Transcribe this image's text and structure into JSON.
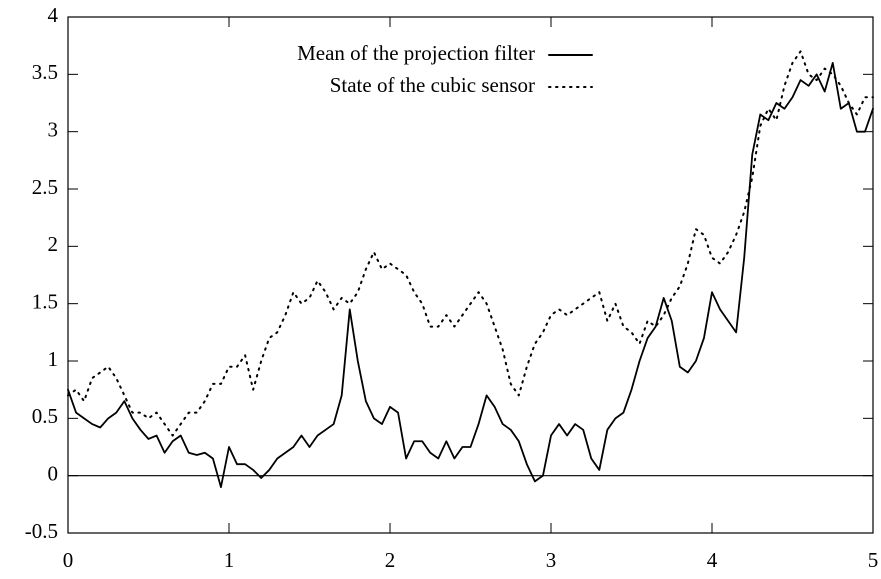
{
  "chart_data": {
    "type": "line",
    "x": [
      0,
      0.05,
      0.1,
      0.15,
      0.2,
      0.25,
      0.3,
      0.35,
      0.4,
      0.45,
      0.5,
      0.55,
      0.6,
      0.65,
      0.7,
      0.75,
      0.8,
      0.85,
      0.9,
      0.95,
      1,
      1.05,
      1.1,
      1.15,
      1.2,
      1.25,
      1.3,
      1.35,
      1.4,
      1.45,
      1.5,
      1.55,
      1.6,
      1.65,
      1.7,
      1.75,
      1.8,
      1.85,
      1.9,
      1.95,
      2,
      2.05,
      2.1,
      2.15,
      2.2,
      2.25,
      2.3,
      2.35,
      2.4,
      2.45,
      2.5,
      2.55,
      2.6,
      2.65,
      2.7,
      2.75,
      2.8,
      2.85,
      2.9,
      2.95,
      3,
      3.05,
      3.1,
      3.15,
      3.2,
      3.25,
      3.3,
      3.35,
      3.4,
      3.45,
      3.5,
      3.55,
      3.6,
      3.65,
      3.7,
      3.75,
      3.8,
      3.85,
      3.9,
      3.95,
      4,
      4.05,
      4.1,
      4.15,
      4.2,
      4.25,
      4.3,
      4.35,
      4.4,
      4.45,
      4.5,
      4.55,
      4.6,
      4.65,
      4.7,
      4.75,
      4.8,
      4.85,
      4.9,
      4.95,
      5
    ],
    "series": [
      {
        "name": "Mean of the projection filter",
        "color": "#000000",
        "style": "solid",
        "values": [
          0.75,
          0.55,
          0.5,
          0.45,
          0.42,
          0.5,
          0.55,
          0.65,
          0.5,
          0.4,
          0.32,
          0.35,
          0.2,
          0.3,
          0.35,
          0.2,
          0.18,
          0.2,
          0.15,
          -0.1,
          0.25,
          0.1,
          0.1,
          0.05,
          -0.02,
          0.05,
          0.15,
          0.2,
          0.25,
          0.35,
          0.25,
          0.35,
          0.4,
          0.45,
          0.7,
          1.45,
          1.0,
          0.65,
          0.5,
          0.45,
          0.6,
          0.55,
          0.15,
          0.3,
          0.3,
          0.2,
          0.15,
          0.3,
          0.15,
          0.25,
          0.25,
          0.45,
          0.7,
          0.6,
          0.45,
          0.4,
          0.3,
          0.1,
          -0.05,
          0.0,
          0.35,
          0.45,
          0.35,
          0.45,
          0.4,
          0.15,
          0.05,
          0.4,
          0.5,
          0.55,
          0.75,
          1.0,
          1.2,
          1.3,
          1.55,
          1.35,
          0.95,
          0.9,
          1.0,
          1.2,
          1.6,
          1.45,
          1.35,
          1.25,
          1.9,
          2.8,
          3.15,
          3.1,
          3.25,
          3.2,
          3.3,
          3.45,
          3.4,
          3.5,
          3.35,
          3.6,
          3.2,
          3.25,
          3.0,
          3.0,
          3.2
        ]
      },
      {
        "name": "State of the cubic sensor",
        "color": "#000000",
        "style": "dotted",
        "values": [
          0.7,
          0.75,
          0.65,
          0.85,
          0.9,
          0.95,
          0.85,
          0.7,
          0.55,
          0.55,
          0.5,
          0.55,
          0.45,
          0.35,
          0.45,
          0.55,
          0.55,
          0.65,
          0.8,
          0.8,
          0.95,
          0.95,
          1.05,
          0.75,
          1.0,
          1.2,
          1.25,
          1.4,
          1.6,
          1.5,
          1.55,
          1.7,
          1.6,
          1.45,
          1.55,
          1.5,
          1.6,
          1.8,
          1.95,
          1.8,
          1.85,
          1.8,
          1.75,
          1.6,
          1.5,
          1.3,
          1.3,
          1.4,
          1.3,
          1.4,
          1.5,
          1.6,
          1.5,
          1.3,
          1.1,
          0.8,
          0.7,
          0.95,
          1.15,
          1.25,
          1.4,
          1.45,
          1.4,
          1.45,
          1.5,
          1.55,
          1.6,
          1.35,
          1.5,
          1.3,
          1.25,
          1.15,
          1.35,
          1.3,
          1.4,
          1.55,
          1.65,
          1.85,
          2.15,
          2.1,
          1.9,
          1.85,
          1.95,
          2.1,
          2.3,
          2.6,
          3.05,
          3.2,
          3.1,
          3.4,
          3.6,
          3.7,
          3.5,
          3.45,
          3.55,
          3.5,
          3.4,
          3.25,
          3.15,
          3.3,
          3.3
        ]
      }
    ],
    "xlim": [
      0,
      5
    ],
    "ylim": [
      -0.5,
      4
    ],
    "xticks": [
      0,
      1,
      2,
      3,
      4,
      5
    ],
    "yticks": [
      -0.5,
      0,
      0.5,
      1,
      1.5,
      2,
      2.5,
      3,
      3.5,
      4
    ],
    "zeroaxis": true,
    "legend": "top"
  }
}
